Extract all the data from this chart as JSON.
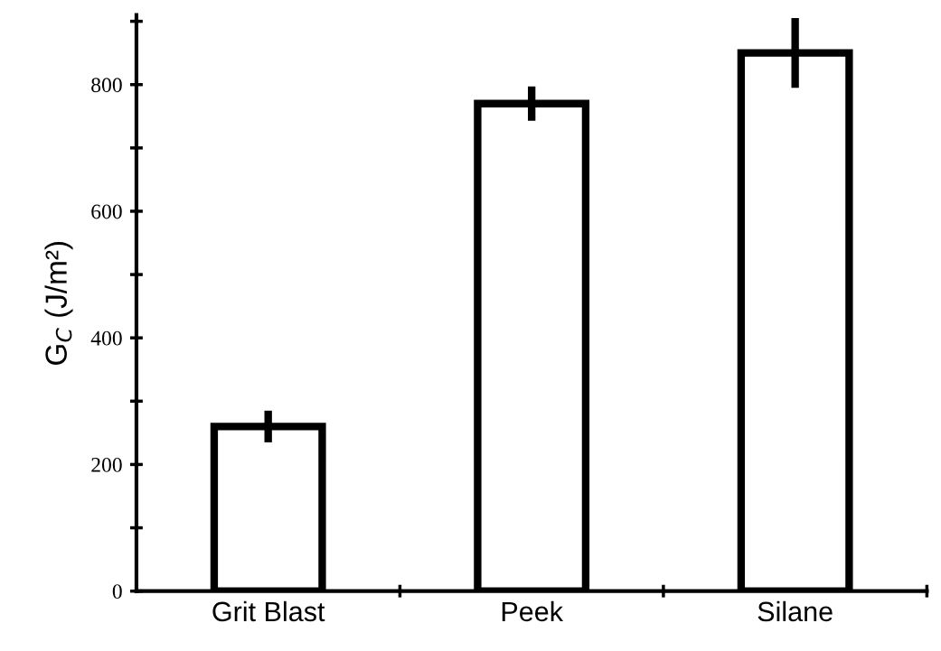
{
  "chart_data": {
    "type": "bar",
    "ylabel": "G$_{C}$ (J/m²)",
    "categories": [
      "Grit Blast",
      "Peek",
      "Silane"
    ],
    "values": [
      260,
      770,
      850
    ],
    "errors": [
      25,
      27,
      55
    ],
    "color": "#ffffff",
    "ylim": [
      0,
      910
    ],
    "yticks": [
      0,
      {
        "value": 100,
        "label": null
      },
      200,
      {
        "value": 300,
        "label": null
      },
      400,
      {
        "value": 500,
        "label": null
      },
      600,
      {
        "value": 700,
        "label": null
      },
      800,
      {
        "value": 900,
        "label": null
      }
    ],
    "grid": false,
    "legend": false
  }
}
